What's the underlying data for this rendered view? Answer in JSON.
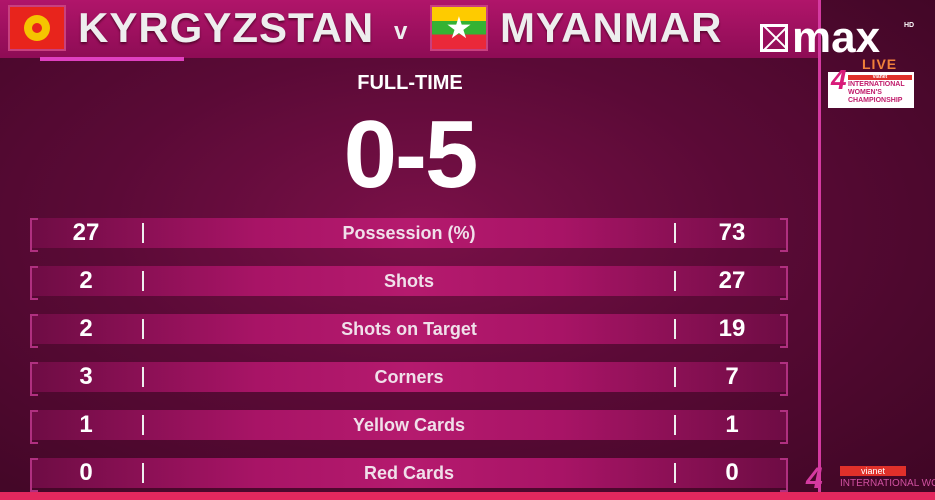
{
  "match": {
    "home": "KYRGYZSTAN",
    "separator": "v",
    "away": "MYANMAR",
    "status": "FULL-TIME",
    "score": "0-5"
  },
  "stats": [
    {
      "label": "Possession (%)",
      "home": "27",
      "away": "73"
    },
    {
      "label": "Shots",
      "home": "2",
      "away": "27"
    },
    {
      "label": "Shots on Target",
      "home": "2",
      "away": "19"
    },
    {
      "label": "Corners",
      "home": "3",
      "away": "7"
    },
    {
      "label": "Yellow Cards",
      "home": "1",
      "away": "1"
    },
    {
      "label": "Red Cards",
      "home": "0",
      "away": "0"
    }
  ],
  "broadcaster": {
    "name": "max",
    "hd": "HD",
    "live": "LIVE"
  },
  "tournament": {
    "sponsor": "vianet",
    "line1": "INTERNATIONAL",
    "line2": "WOMEN'S",
    "line3": "CHAMPIONSHIP",
    "bottom_text": "INTERNATIONAL WOMEN'S"
  },
  "colors": {
    "header": "#a0105e",
    "background": "#5a0a36",
    "accent": "#d43aa0",
    "bottom_bar": "#e3285e"
  }
}
